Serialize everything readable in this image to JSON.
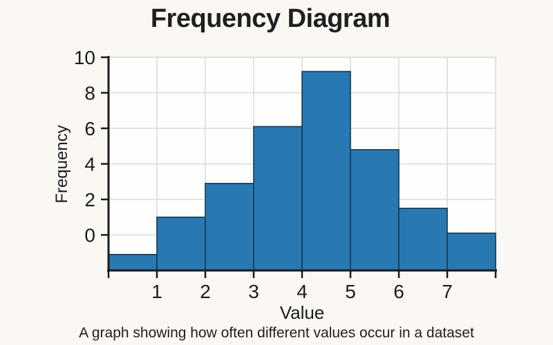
{
  "page": {
    "background_color": "#fbf8f4"
  },
  "chart_data": {
    "type": "bar",
    "title": "Frequency Diagram",
    "xlabel": "Value",
    "ylabel": "Frequency",
    "caption": "A graph showing how often different values occur in a dataset",
    "bin_edges": [
      0,
      1,
      2,
      3,
      4,
      5,
      6,
      7,
      8
    ],
    "values": [
      -1.1,
      1.0,
      2.9,
      6.1,
      9.2,
      4.8,
      1.5,
      0.1
    ],
    "bar_baseline": -2,
    "xlim": [
      0,
      8
    ],
    "ylim": [
      -2,
      10
    ],
    "x_tick_labels": [
      1,
      2,
      3,
      4,
      5,
      6,
      7
    ],
    "y_tick_labels": [
      0,
      2,
      4,
      6,
      8,
      10
    ],
    "grid": true,
    "legend": "none",
    "colors": {
      "bar_fill": "#2878b2",
      "bar_edge": "#173a54",
      "grid": "#d9d9d9",
      "axis": "#1a1a1a",
      "plot_bg": "#fefefc"
    }
  }
}
